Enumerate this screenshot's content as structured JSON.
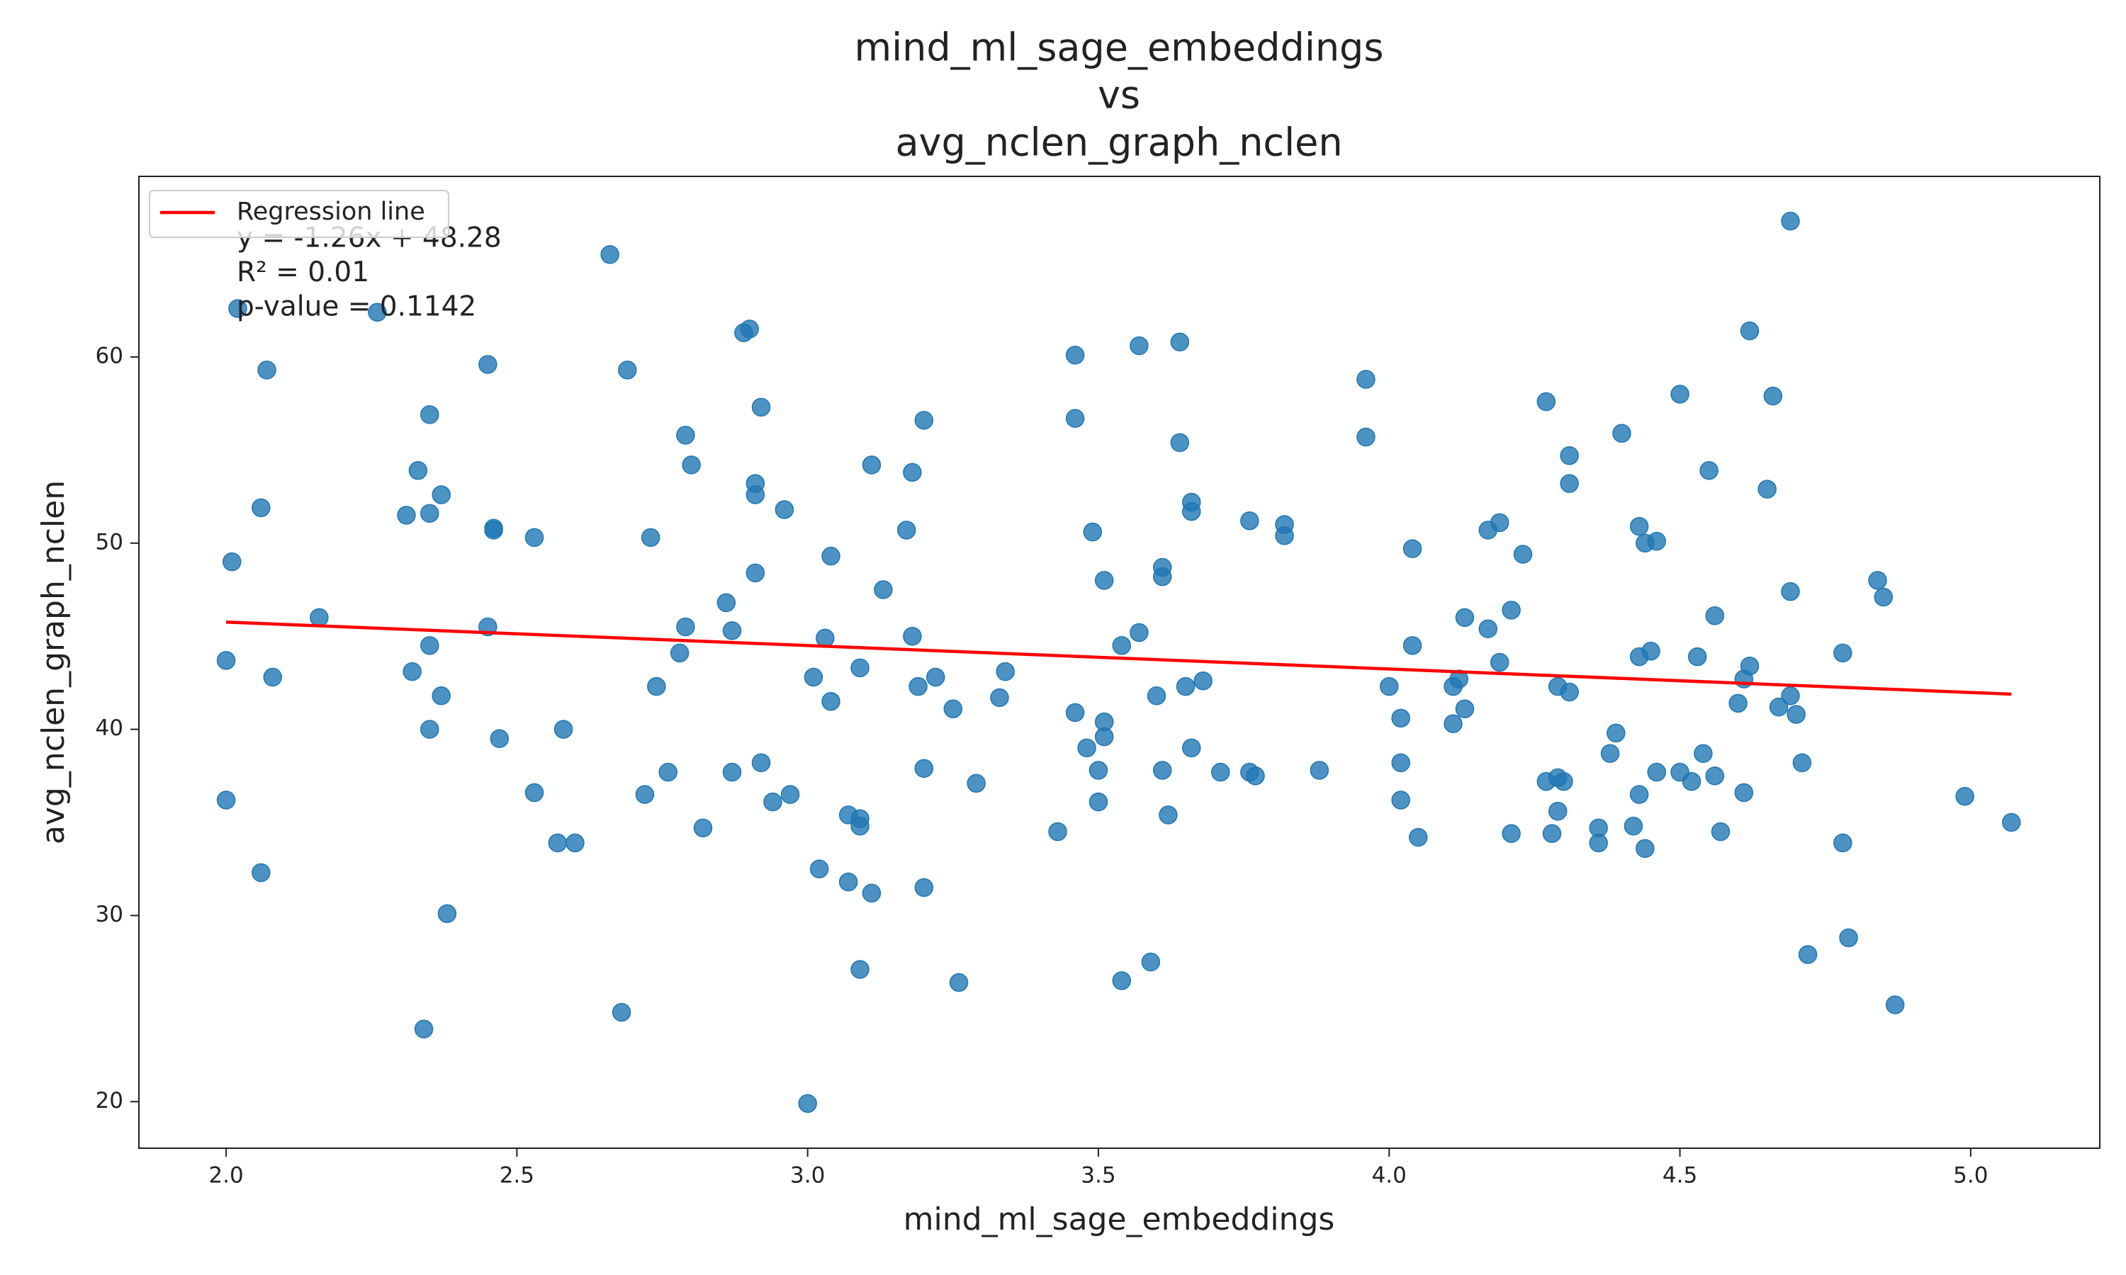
{
  "chart_data": {
    "type": "scatter",
    "title": [
      "mind_ml_sage_embeddings",
      "vs",
      "avg_nclen_graph_nclen"
    ],
    "xlabel": "mind_ml_sage_embeddings",
    "ylabel": "avg_nclen_graph_nclen",
    "xlim": [
      1.85,
      5.222
    ],
    "ylim": [
      17.5,
      69.7
    ],
    "xticks": [
      {
        "value": 2,
        "label": "2.0"
      },
      {
        "value": 2.5,
        "label": "2.5"
      },
      {
        "value": 3,
        "label": "3.0"
      },
      {
        "value": 3.5,
        "label": "3.5"
      },
      {
        "value": 4,
        "label": "4.0"
      },
      {
        "value": 4.5,
        "label": "4.5"
      },
      {
        "value": 5,
        "label": "5.0"
      }
    ],
    "yticks": [
      20,
      30,
      40,
      50,
      60
    ],
    "grid": false,
    "color": "#1f77b4",
    "x": [
      2.02,
      2.26,
      2.66,
      2.07,
      2.01,
      2.06,
      2.0,
      2.08,
      2.0,
      2.06,
      2.16,
      2.35,
      2.45,
      2.33,
      2.31,
      2.35,
      2.37,
      2.46,
      2.46,
      2.53,
      2.45,
      2.35,
      2.32,
      2.37,
      2.35,
      2.47,
      2.53,
      2.58,
      2.57,
      2.6,
      2.38,
      2.34,
      2.68,
      2.69,
      2.73,
      2.74,
      2.72,
      2.76,
      2.78,
      2.79,
      2.82,
      2.79,
      2.8,
      2.89,
      2.9,
      2.92,
      2.91,
      2.91,
      2.96,
      2.91,
      2.86,
      2.87,
      2.87,
      2.92,
      2.94,
      2.97,
      3.0,
      3.01,
      3.03,
      3.04,
      3.04,
      3.02,
      3.07,
      3.09,
      3.09,
      3.09,
      3.07,
      3.09,
      3.11,
      3.11,
      3.13,
      3.18,
      3.17,
      3.18,
      3.2,
      3.19,
      3.22,
      3.25,
      3.2,
      3.2,
      3.29,
      3.26,
      3.34,
      3.33,
      3.46,
      3.46,
      3.46,
      3.43,
      3.49,
      3.51,
      3.51,
      3.51,
      3.48,
      3.5,
      3.5,
      3.54,
      3.57,
      3.57,
      3.64,
      3.64,
      3.61,
      3.61,
      3.6,
      3.66,
      3.66,
      3.65,
      3.68,
      3.66,
      3.61,
      3.62,
      3.54,
      3.59,
      3.71,
      3.76,
      3.77,
      3.76,
      3.82,
      3.82,
      3.88,
      3.96,
      3.96,
      4.04,
      4.04,
      4.0,
      4.02,
      4.02,
      4.02,
      4.05,
      4.13,
      4.11,
      4.12,
      4.13,
      4.11,
      4.17,
      4.19,
      4.17,
      4.21,
      4.19,
      4.23,
      4.21,
      4.27,
      4.31,
      4.31,
      4.29,
      4.31,
      4.27,
      4.29,
      4.3,
      4.29,
      4.28,
      4.4,
      4.43,
      4.44,
      4.46,
      4.43,
      4.45,
      4.39,
      4.38,
      4.43,
      4.46,
      4.36,
      4.36,
      4.42,
      4.44,
      4.5,
      4.55,
      4.53,
      4.56,
      4.5,
      4.52,
      4.54,
      4.56,
      4.57,
      4.62,
      4.66,
      4.65,
      4.62,
      4.61,
      4.6,
      4.61,
      4.69,
      4.69,
      4.69,
      4.67,
      4.7,
      4.71,
      4.72,
      4.84,
      4.85,
      4.78,
      4.78,
      4.79,
      4.87,
      4.99,
      5.07
    ],
    "values": [
      62.6,
      62.4,
      65.5,
      59.3,
      49.0,
      51.9,
      43.7,
      42.8,
      36.2,
      32.3,
      46.0,
      56.9,
      59.6,
      53.9,
      51.5,
      51.6,
      52.6,
      50.7,
      50.8,
      50.3,
      45.5,
      44.5,
      43.1,
      41.8,
      40.0,
      39.5,
      36.6,
      40.0,
      33.9,
      33.9,
      30.1,
      23.9,
      24.8,
      59.3,
      50.3,
      42.3,
      36.5,
      37.7,
      44.1,
      45.5,
      34.7,
      55.8,
      54.2,
      61.3,
      61.5,
      57.3,
      53.2,
      52.6,
      51.8,
      48.4,
      46.8,
      45.3,
      37.7,
      38.2,
      36.1,
      36.5,
      19.9,
      42.8,
      44.9,
      49.3,
      41.5,
      32.5,
      35.4,
      43.3,
      35.2,
      34.8,
      31.8,
      27.1,
      31.2,
      54.2,
      47.5,
      53.8,
      50.7,
      45.0,
      56.6,
      42.3,
      42.8,
      41.1,
      37.9,
      31.5,
      37.1,
      26.4,
      43.1,
      41.7,
      60.1,
      56.7,
      40.9,
      34.5,
      50.6,
      48.0,
      40.4,
      39.6,
      39.0,
      37.8,
      36.1,
      44.5,
      45.2,
      60.6,
      60.8,
      55.4,
      48.7,
      48.2,
      41.8,
      52.2,
      51.7,
      42.3,
      42.6,
      39.0,
      37.8,
      35.4,
      26.5,
      27.5,
      37.7,
      37.7,
      37.5,
      51.2,
      51.0,
      50.4,
      37.8,
      58.8,
      55.7,
      49.7,
      44.5,
      42.3,
      40.6,
      38.2,
      36.2,
      34.2,
      46.0,
      42.3,
      42.7,
      41.1,
      40.3,
      50.7,
      51.1,
      45.4,
      46.4,
      43.6,
      49.4,
      34.4,
      57.6,
      54.7,
      53.2,
      42.3,
      42.0,
      37.2,
      37.4,
      37.2,
      35.6,
      34.4,
      55.9,
      50.9,
      50.0,
      50.1,
      43.9,
      44.2,
      39.8,
      38.7,
      36.5,
      37.7,
      34.7,
      33.9,
      34.8,
      33.6,
      58.0,
      53.9,
      43.9,
      46.1,
      37.7,
      37.2,
      38.7,
      37.5,
      34.5,
      61.4,
      57.9,
      52.9,
      43.4,
      42.7,
      41.4,
      36.6,
      67.3,
      47.4,
      41.8,
      41.2,
      40.8,
      38.2,
      27.9,
      48.0,
      47.1,
      44.1,
      33.9,
      28.8,
      25.2,
      36.4,
      35.0
    ],
    "regression": {
      "name": "Regression line",
      "color": "#ff0000",
      "x": [
        2.0,
        5.07
      ],
      "values": [
        45.76,
        41.89
      ]
    },
    "legend": "upper left",
    "annotations": [
      "y = -1.26x + 48.28",
      "R² = 0.01",
      "p-value = 0.1142"
    ]
  }
}
